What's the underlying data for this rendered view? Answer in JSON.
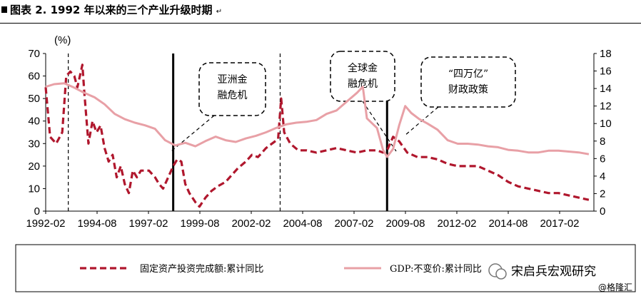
{
  "title": "图表 2. 1992 年以来的三个产业升级时期",
  "title_suffix": "↵",
  "watermark": {
    "main": "宋启兵宏观研究",
    "sub": "@格隆汇"
  },
  "annotations": [
    {
      "id": "asia",
      "lines": [
        "亚洲金",
        "融危机"
      ]
    },
    {
      "id": "global",
      "lines": [
        "全球金",
        "融危机"
      ]
    },
    {
      "id": "stimulus",
      "lines": [
        "“四万亿”",
        "财政政策"
      ]
    }
  ],
  "chart_data": {
    "type": "line",
    "x_tick_labels": [
      "1992-02",
      "1994-08",
      "1997-02",
      "1999-08",
      "2002-02",
      "2004-08",
      "2007-02",
      "2009-08",
      "2012-02",
      "2014-08",
      "2017-02"
    ],
    "y_left_label": "(%)",
    "y_left_ticks": [
      0,
      10,
      20,
      30,
      40,
      50,
      60,
      70
    ],
    "y_left_range": [
      0,
      70
    ],
    "y_right_ticks": [
      0,
      2,
      4,
      6,
      8,
      10,
      12,
      14,
      16,
      18
    ],
    "y_right_range": [
      0,
      18
    ],
    "x_range": [
      1992.08,
      2019.25
    ],
    "vertical_markers": [
      {
        "x": 1993.2,
        "style": "dashed"
      },
      {
        "x": 1998.4,
        "style": "solid"
      },
      {
        "x": 2003.7,
        "style": "dashed"
      },
      {
        "x": 2009.0,
        "style": "solid"
      }
    ],
    "series": [
      {
        "name": "固定资产投资完成额:累计同比",
        "axis": "left",
        "color": "#b0172d",
        "style": "dashed",
        "points": [
          [
            1992.08,
            55
          ],
          [
            1992.3,
            33
          ],
          [
            1992.6,
            30
          ],
          [
            1992.9,
            35
          ],
          [
            1993.1,
            60
          ],
          [
            1993.3,
            62
          ],
          [
            1993.5,
            60
          ],
          [
            1993.65,
            55
          ],
          [
            1993.9,
            65
          ],
          [
            1994.0,
            52
          ],
          [
            1994.2,
            30
          ],
          [
            1994.4,
            40
          ],
          [
            1994.6,
            35
          ],
          [
            1994.8,
            38
          ],
          [
            1995.0,
            28
          ],
          [
            1995.2,
            22
          ],
          [
            1995.4,
            25
          ],
          [
            1995.6,
            15
          ],
          [
            1995.8,
            20
          ],
          [
            1996.0,
            12
          ],
          [
            1996.2,
            8
          ],
          [
            1996.4,
            18
          ],
          [
            1996.6,
            15
          ],
          [
            1996.8,
            18
          ],
          [
            1997.0,
            18
          ],
          [
            1997.2,
            18
          ],
          [
            1997.5,
            15
          ],
          [
            1997.7,
            12
          ],
          [
            1997.9,
            10
          ],
          [
            1998.1,
            14
          ],
          [
            1998.4,
            20
          ],
          [
            1998.6,
            23
          ],
          [
            1998.8,
            22
          ],
          [
            1999.0,
            12
          ],
          [
            1999.2,
            8
          ],
          [
            1999.5,
            4
          ],
          [
            1999.7,
            2
          ],
          [
            2000.0,
            6
          ],
          [
            2000.3,
            9
          ],
          [
            2000.6,
            11
          ],
          [
            2001.0,
            13
          ],
          [
            2001.3,
            16
          ],
          [
            2001.6,
            19
          ],
          [
            2002.0,
            22
          ],
          [
            2002.3,
            25
          ],
          [
            2002.6,
            24
          ],
          [
            2003.0,
            28
          ],
          [
            2003.3,
            30
          ],
          [
            2003.6,
            32
          ],
          [
            2003.75,
            50
          ],
          [
            2003.9,
            35
          ],
          [
            2004.2,
            30
          ],
          [
            2004.6,
            27
          ],
          [
            2005.0,
            27
          ],
          [
            2005.5,
            26
          ],
          [
            2006.0,
            27
          ],
          [
            2006.5,
            28
          ],
          [
            2007.0,
            27
          ],
          [
            2007.5,
            26
          ],
          [
            2008.0,
            27
          ],
          [
            2008.5,
            27
          ],
          [
            2008.8,
            26
          ],
          [
            2009.0,
            27
          ],
          [
            2009.3,
            33
          ],
          [
            2009.6,
            31
          ],
          [
            2010.0,
            26
          ],
          [
            2010.5,
            24
          ],
          [
            2011.0,
            24
          ],
          [
            2011.5,
            23
          ],
          [
            2012.0,
            21
          ],
          [
            2012.5,
            20
          ],
          [
            2013.0,
            20
          ],
          [
            2013.5,
            20
          ],
          [
            2014.0,
            18
          ],
          [
            2014.5,
            16
          ],
          [
            2015.0,
            13
          ],
          [
            2015.5,
            11
          ],
          [
            2016.0,
            10
          ],
          [
            2016.5,
            9
          ],
          [
            2017.0,
            8
          ],
          [
            2017.5,
            8
          ],
          [
            2018.0,
            7
          ],
          [
            2018.5,
            6
          ],
          [
            2019.0,
            5
          ]
        ]
      },
      {
        "name": "GDP:不变价:累计同比",
        "axis": "right",
        "color": "#e8a0a6",
        "style": "solid",
        "points": [
          [
            1992.08,
            14.2
          ],
          [
            1992.5,
            14.5
          ],
          [
            1993.0,
            14.6
          ],
          [
            1993.5,
            14.1
          ],
          [
            1994.0,
            13.5
          ],
          [
            1994.5,
            13.0
          ],
          [
            1995.0,
            12.2
          ],
          [
            1995.5,
            11.1
          ],
          [
            1996.0,
            10.5
          ],
          [
            1996.5,
            10.1
          ],
          [
            1997.0,
            9.8
          ],
          [
            1997.5,
            9.4
          ],
          [
            1998.0,
            8.1
          ],
          [
            1998.5,
            7.5
          ],
          [
            1999.0,
            7.8
          ],
          [
            1999.5,
            7.4
          ],
          [
            2000.0,
            8.0
          ],
          [
            2000.5,
            8.5
          ],
          [
            2001.0,
            8.1
          ],
          [
            2001.5,
            7.9
          ],
          [
            2002.0,
            8.3
          ],
          [
            2002.5,
            8.6
          ],
          [
            2003.0,
            9.0
          ],
          [
            2003.5,
            9.5
          ],
          [
            2004.0,
            9.9
          ],
          [
            2004.5,
            10.1
          ],
          [
            2005.0,
            10.2
          ],
          [
            2005.5,
            10.4
          ],
          [
            2006.0,
            11.1
          ],
          [
            2006.5,
            11.5
          ],
          [
            2007.0,
            12.5
          ],
          [
            2007.5,
            13.5
          ],
          [
            2007.8,
            14.2
          ],
          [
            2008.0,
            10.6
          ],
          [
            2008.5,
            9.5
          ],
          [
            2008.8,
            7.0
          ],
          [
            2009.0,
            6.2
          ],
          [
            2009.3,
            7.1
          ],
          [
            2009.6,
            9.8
          ],
          [
            2009.9,
            12.0
          ],
          [
            2010.2,
            11.2
          ],
          [
            2010.6,
            10.5
          ],
          [
            2011.0,
            10.0
          ],
          [
            2011.5,
            9.3
          ],
          [
            2012.0,
            8.1
          ],
          [
            2012.5,
            7.7
          ],
          [
            2013.0,
            7.7
          ],
          [
            2013.5,
            7.6
          ],
          [
            2014.0,
            7.4
          ],
          [
            2014.5,
            7.3
          ],
          [
            2015.0,
            7.0
          ],
          [
            2015.5,
            6.9
          ],
          [
            2016.0,
            6.7
          ],
          [
            2016.5,
            6.7
          ],
          [
            2017.0,
            6.9
          ],
          [
            2017.5,
            6.9
          ],
          [
            2018.0,
            6.8
          ],
          [
            2018.5,
            6.7
          ],
          [
            2019.0,
            6.5
          ]
        ]
      }
    ]
  }
}
